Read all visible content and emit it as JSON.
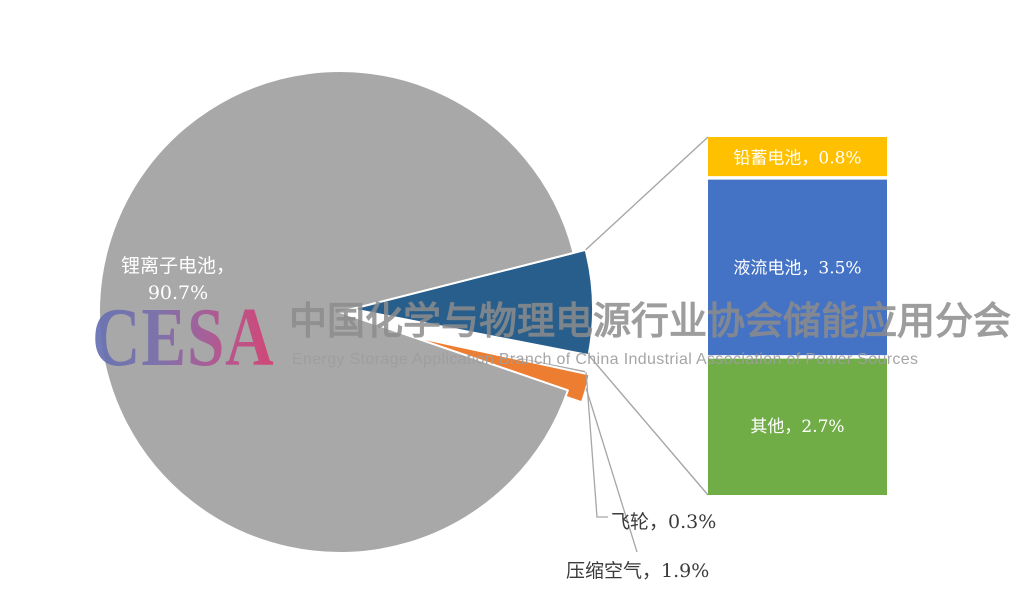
{
  "watermark": {
    "logo_text": "CESA",
    "title": "中国化学与物理电源行业协会储能应用分会",
    "subtitle": "Energy Storage Application Branch of China Industrial Association of Power Sources",
    "logo_gradient_start": "#6470B2",
    "logo_gradient_end": "#D63F72",
    "text_color": "#8C8C8C"
  },
  "chart_data": {
    "type": "pie",
    "variant": "pie-of-pie",
    "unit": "%",
    "legend": "none",
    "background": "#FFFFFF",
    "label_color_on_slices": "#FFFFFF",
    "outside_label_color": "#3B3B3B",
    "leader_line_color": "#A6A6A6",
    "pie_slices": [
      {
        "id": "lithium-ion",
        "label": "锂离子电池",
        "value": 90.7,
        "color": "#A8A8A8",
        "data_label_line1": "锂离子电池，",
        "data_label_line2": "90.7%"
      },
      {
        "id": "breakout-group",
        "label": "",
        "value": 7.0,
        "color": "#275E8C"
      },
      {
        "id": "flywheel",
        "label": "飞轮",
        "value": 0.3,
        "color": "#A8A8A8",
        "data_label": "飞轮，0.3%"
      },
      {
        "id": "compressed-air",
        "label": "压缩空气",
        "value": 1.9,
        "color": "#ED7D31",
        "data_label": "压缩空气，1.9%"
      }
    ],
    "bar_segments": [
      {
        "id": "lead-acid",
        "label": "铅蓄电池",
        "value": 0.8,
        "color": "#FFC000",
        "data_label": "铅蓄电池，0.8%"
      },
      {
        "id": "flow-battery",
        "label": "液流电池",
        "value": 3.5,
        "color": "#4472C4",
        "data_label": "液流电池，3.5%"
      },
      {
        "id": "other",
        "label": "其他",
        "value": 2.7,
        "color": "#70AD47",
        "data_label": "其他，2.7%"
      }
    ]
  }
}
